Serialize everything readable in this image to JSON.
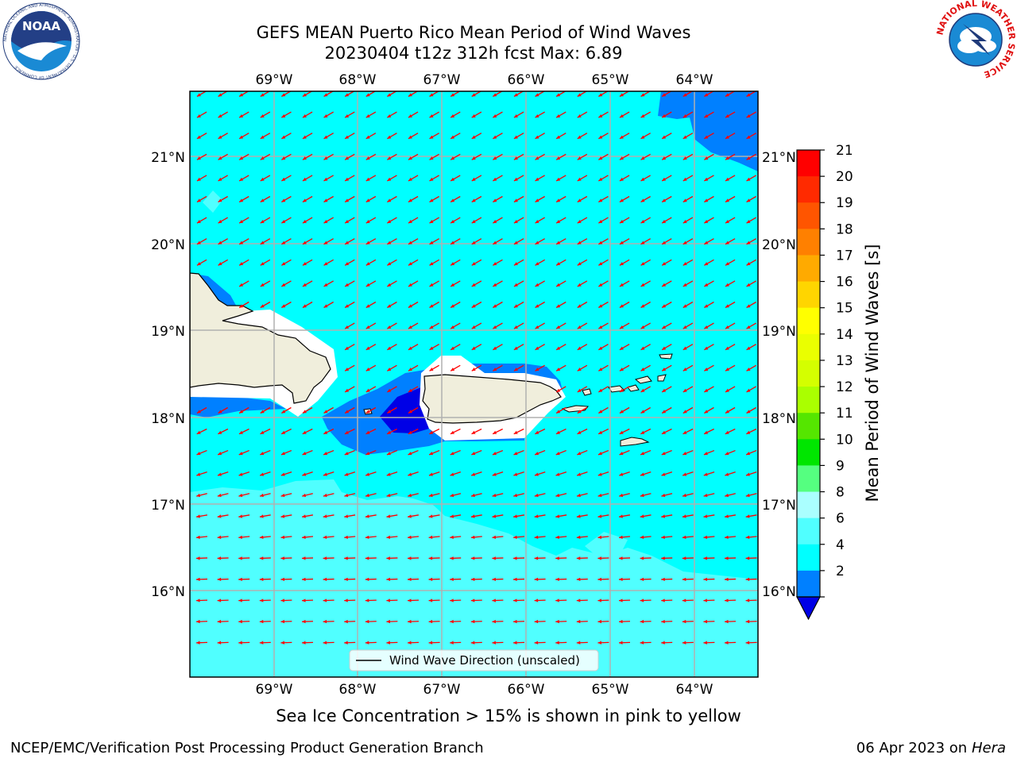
{
  "header": {
    "title_line1": "GEFS MEAN Puerto Rico Mean Period of Wind Waves",
    "title_line2": "20230404 t12z 312h fcst   Max: 6.89"
  },
  "logos": {
    "noaa": {
      "text": "NOAA",
      "ring_text": "NATIONAL OCEANIC AND ATMOSPHERIC ADMINISTRATION · U.S. DEPARTMENT OF COMMERCE"
    },
    "nws": {
      "ring_text": "NATIONAL WEATHER SERVICE"
    }
  },
  "map": {
    "lon_labels": [
      "69°W",
      "68°W",
      "67°W",
      "66°W",
      "65°W",
      "64°W"
    ],
    "lat_labels": [
      "21°N",
      "20°N",
      "19°N",
      "18°N",
      "17°N",
      "16°N"
    ],
    "colors": {
      "land": "#f0eedc",
      "coastline": "#000000",
      "grid": "#b0b0b0",
      "arrow": "#ff0000",
      "shade_4_6": "#00ffff",
      "shade_6_8": "#50ffff",
      "shade_2_4": "#0080ff",
      "shade_lt2": "#0000e6"
    },
    "legend_label": "Wind Wave Direction (unscaled)",
    "arrow_direction": "toward southwest (north), toward west (south)"
  },
  "colorbar": {
    "label": "Mean Period of Wind Waves [s]",
    "ticks": [
      "21",
      "20",
      "19",
      "18",
      "17",
      "16",
      "15",
      "14",
      "13",
      "12",
      "11",
      "10",
      "9",
      "8",
      "6",
      "4",
      "2"
    ],
    "colors": [
      "#ff0000",
      "#ff2a00",
      "#ff5500",
      "#ff8000",
      "#ffaa00",
      "#ffd500",
      "#ffff00",
      "#eaff00",
      "#d4ff00",
      "#aaff00",
      "#55e600",
      "#00e600",
      "#55ff80",
      "#aaffff",
      "#50ffff",
      "#00ffff",
      "#0080ff"
    ],
    "under_color": "#0000e6"
  },
  "footer": {
    "note": "Sea Ice Concentration > 15% is shown in pink to yellow",
    "left": "NCEP/EMC/Verification Post Processing Product Generation Branch",
    "date": "06 Apr 2023 on",
    "machine": "Hera"
  }
}
